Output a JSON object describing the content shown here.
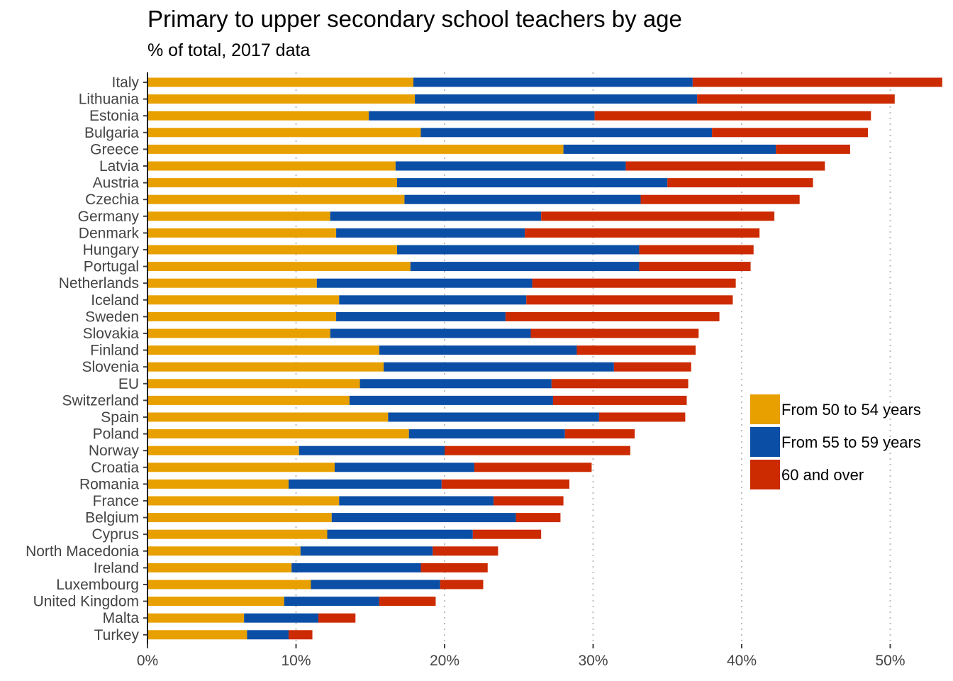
{
  "chart_data": {
    "type": "bar",
    "orientation": "horizontal",
    "stacked": true,
    "title": "Primary to upper secondary school teachers by age",
    "subtitle": "% of total, 2017 data",
    "xlabel": "",
    "ylabel": "",
    "xlim": [
      0,
      53.5
    ],
    "x_ticks": [
      0,
      10,
      20,
      30,
      40,
      50
    ],
    "x_tick_labels": [
      "0%",
      "10%",
      "20%",
      "30%",
      "40%",
      "50%"
    ],
    "grid": "vertical dotted",
    "legend_position": "right",
    "categories": [
      "Italy",
      "Lithuania",
      "Estonia",
      "Bulgaria",
      "Greece",
      "Latvia",
      "Austria",
      "Czechia",
      "Germany",
      "Denmark",
      "Hungary",
      "Portugal",
      "Netherlands",
      "Iceland",
      "Sweden",
      "Slovakia",
      "Finland",
      "Slovenia",
      "EU",
      "Switzerland",
      "Spain",
      "Poland",
      "Norway",
      "Croatia",
      "Romania",
      "France",
      "Belgium",
      "Cyprus",
      "North Macedonia",
      "Ireland",
      "Luxembourg",
      "United Kingdom",
      "Malta",
      "Turkey"
    ],
    "series": [
      {
        "name": "From 50 to 54 years",
        "color": "#E8A000",
        "values": [
          17.9,
          18.0,
          14.9,
          18.4,
          28.0,
          16.7,
          16.8,
          17.3,
          12.3,
          12.7,
          16.8,
          17.7,
          11.4,
          12.9,
          12.7,
          12.3,
          15.6,
          15.9,
          14.3,
          13.6,
          16.2,
          17.6,
          10.2,
          12.6,
          9.5,
          12.9,
          12.4,
          12.1,
          10.3,
          9.7,
          11.0,
          9.2,
          6.5,
          6.7
        ]
      },
      {
        "name": "From 55 to 59 years",
        "color": "#0A4EA6",
        "values": [
          18.8,
          19.0,
          15.2,
          19.6,
          14.3,
          15.5,
          18.2,
          15.9,
          14.2,
          12.7,
          16.3,
          15.4,
          14.5,
          12.6,
          11.4,
          13.5,
          13.3,
          15.5,
          12.9,
          13.7,
          14.2,
          10.5,
          9.8,
          9.4,
          10.3,
          10.4,
          12.4,
          9.8,
          8.9,
          8.7,
          8.7,
          6.4,
          5.0,
          2.8
        ]
      },
      {
        "name": "60 and over",
        "color": "#CC2A00",
        "values": [
          16.8,
          13.3,
          18.6,
          10.5,
          5.0,
          13.4,
          9.8,
          10.7,
          15.7,
          15.8,
          7.7,
          7.5,
          13.7,
          13.9,
          14.4,
          11.3,
          8.0,
          5.2,
          9.2,
          9.0,
          5.8,
          4.7,
          12.5,
          7.9,
          8.6,
          4.7,
          3.0,
          4.6,
          4.4,
          4.5,
          2.9,
          3.8,
          2.5,
          1.6
        ]
      }
    ]
  }
}
